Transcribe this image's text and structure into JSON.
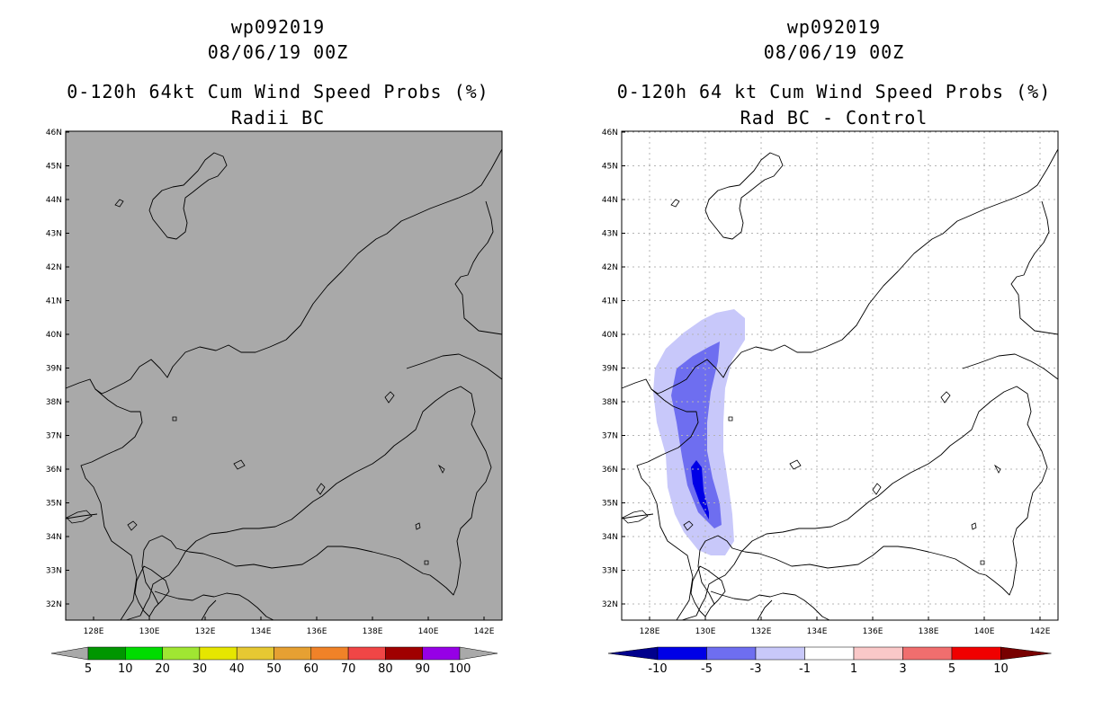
{
  "left_panel": {
    "storm_id": "wp092019",
    "datetime": "08/06/19 00Z",
    "product": "0-120h 64kt Cum Wind Speed Probs (%)",
    "subtitle": "Radii BC",
    "background_color": "#a9a9a9",
    "colorbar": {
      "labels": [
        "5",
        "10",
        "20",
        "30",
        "40",
        "50",
        "60",
        "70",
        "80",
        "90",
        "100"
      ],
      "colors": [
        "#009600",
        "#00dc00",
        "#a0e632",
        "#e6e600",
        "#e6c832",
        "#e6a032",
        "#f08228",
        "#f04646",
        "#a00000",
        "#9600e6"
      ],
      "end_arrow_color": "#a9a9a9"
    }
  },
  "right_panel": {
    "storm_id": "wp092019",
    "datetime": "08/06/19 00Z",
    "product": "0-120h 64 kt Cum Wind Speed Probs (%)",
    "subtitle": "Rad BC - Control",
    "background_color": "#ffffff",
    "colorbar": {
      "labels": [
        "-10",
        "-5",
        "-3",
        "-1",
        "1",
        "3",
        "5",
        "10"
      ],
      "colors": [
        "#0000e6",
        "#6e6ef0",
        "#c8c8fa",
        "#ffffff",
        "#fac8c8",
        "#f06e6e",
        "#f00000"
      ],
      "left_arrow_color": "#00008c",
      "right_arrow_color": "#780000"
    },
    "shading_colors": {
      "light": "#c8c8fa",
      "medium": "#6e6ef0",
      "dark": "#0000e6"
    }
  },
  "map": {
    "lon_ticks": [
      "128E",
      "130E",
      "132E",
      "134E",
      "136E",
      "138E",
      "140E",
      "142E"
    ],
    "lat_ticks": [
      "32N",
      "33N",
      "34N",
      "35N",
      "36N",
      "37N",
      "38N",
      "39N",
      "40N",
      "41N",
      "42N",
      "43N",
      "44N",
      "45N",
      "46N"
    ]
  }
}
